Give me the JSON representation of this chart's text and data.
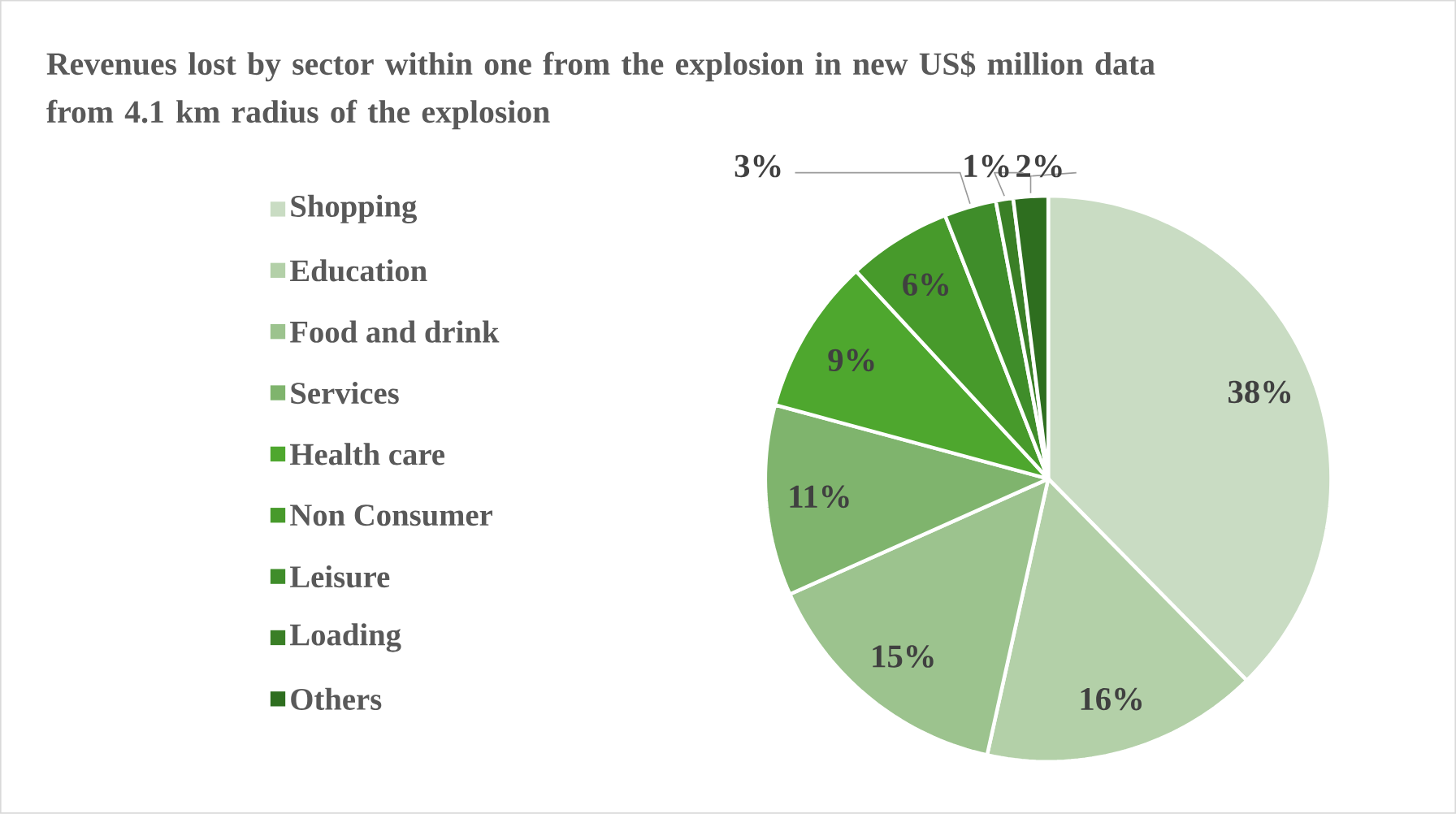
{
  "chart_data": {
    "type": "pie",
    "title": "Revenues lost by sector within one from the explosion in new US$ million data from 4.1 km radius of the explosion",
    "categories": [
      "Shopping",
      "Education",
      "Food and drink",
      "Services",
      "Health care",
      "Non Consumer",
      "Leisure",
      "Loading",
      "Others"
    ],
    "values": [
      38,
      16,
      15,
      11,
      9,
      6,
      3,
      1,
      2
    ],
    "value_labels": [
      "38%",
      "16%",
      "15%",
      "11%",
      "9%",
      "6%",
      "3%",
      "1%",
      "2%"
    ],
    "colors": [
      "#c9dcc3",
      "#b3d0a8",
      "#9cc38e",
      "#7fb46d",
      "#4ea72e",
      "#479a2b",
      "#3f8d2a",
      "#3a7f26",
      "#2e6e1f"
    ],
    "legend": "left"
  }
}
